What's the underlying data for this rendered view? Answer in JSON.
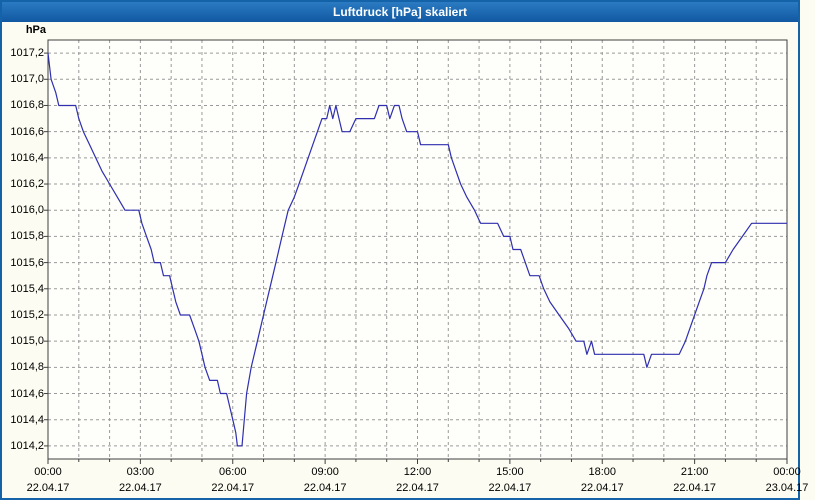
{
  "window": {
    "title": "Luftdruck [hPa] skaliert"
  },
  "colors": {
    "titlebar": "#1463A8",
    "window_border": "#1463A8",
    "background": "#FCFCF2",
    "plot_background": "#FEFEFA",
    "grid": "#9A9A9A",
    "plot_border": "#404040",
    "line": "#2F2FB0",
    "title_text": "#FFFFFF",
    "axis_text": "#000000"
  },
  "chart_data": {
    "type": "line",
    "title": "Luftdruck [hPa] skaliert",
    "xlabel": "",
    "ylabel": "hPa",
    "ylim": [
      1014.1,
      1017.3
    ],
    "xlim_hours": [
      0,
      24
    ],
    "grid": "on",
    "grid_style": "dashed",
    "x_gridline_interval_hours": 1,
    "y_gridline_interval": 0.2,
    "legend": "none",
    "yticks": [
      {
        "value": 1017.2,
        "label": "1017,2"
      },
      {
        "value": 1017.0,
        "label": "1017,0"
      },
      {
        "value": 1016.8,
        "label": "1016,8"
      },
      {
        "value": 1016.6,
        "label": "1016,6"
      },
      {
        "value": 1016.4,
        "label": "1016,4"
      },
      {
        "value": 1016.2,
        "label": "1016,2"
      },
      {
        "value": 1016.0,
        "label": "1016,0"
      },
      {
        "value": 1015.8,
        "label": "1015,8"
      },
      {
        "value": 1015.6,
        "label": "1015,6"
      },
      {
        "value": 1015.4,
        "label": "1015,4"
      },
      {
        "value": 1015.2,
        "label": "1015,2"
      },
      {
        "value": 1015.0,
        "label": "1015,0"
      },
      {
        "value": 1014.8,
        "label": "1014,8"
      },
      {
        "value": 1014.6,
        "label": "1014,6"
      },
      {
        "value": 1014.4,
        "label": "1014,4"
      },
      {
        "value": 1014.2,
        "label": "1014,2"
      }
    ],
    "xticks": [
      {
        "hour": 0,
        "time": "00:00",
        "date": "22.04.17"
      },
      {
        "hour": 3,
        "time": "03:00",
        "date": "22.04.17"
      },
      {
        "hour": 6,
        "time": "06:00",
        "date": "22.04.17"
      },
      {
        "hour": 9,
        "time": "09:00",
        "date": "22.04.17"
      },
      {
        "hour": 12,
        "time": "12:00",
        "date": "22.04.17"
      },
      {
        "hour": 15,
        "time": "15:00",
        "date": "22.04.17"
      },
      {
        "hour": 18,
        "time": "18:00",
        "date": "22.04.17"
      },
      {
        "hour": 21,
        "time": "21:00",
        "date": "22.04.17"
      },
      {
        "hour": 24,
        "time": "00:00",
        "date": "23.04.17"
      }
    ],
    "series": [
      {
        "name": "Luftdruck",
        "unit": "hPa",
        "color": "#2F2FB0",
        "points": [
          [
            0.0,
            1017.2
          ],
          [
            0.1,
            1017.0
          ],
          [
            0.25,
            1016.9
          ],
          [
            0.35,
            1016.8
          ],
          [
            0.9,
            1016.8
          ],
          [
            1.0,
            1016.7
          ],
          [
            1.15,
            1016.6
          ],
          [
            1.35,
            1016.5
          ],
          [
            1.55,
            1016.4
          ],
          [
            1.75,
            1016.3
          ],
          [
            2.0,
            1016.2
          ],
          [
            2.25,
            1016.1
          ],
          [
            2.5,
            1016.0
          ],
          [
            2.95,
            1016.0
          ],
          [
            3.05,
            1015.9
          ],
          [
            3.2,
            1015.8
          ],
          [
            3.35,
            1015.7
          ],
          [
            3.45,
            1015.6
          ],
          [
            3.65,
            1015.6
          ],
          [
            3.75,
            1015.5
          ],
          [
            3.95,
            1015.5
          ],
          [
            4.05,
            1015.4
          ],
          [
            4.15,
            1015.3
          ],
          [
            4.3,
            1015.2
          ],
          [
            4.6,
            1015.2
          ],
          [
            4.75,
            1015.1
          ],
          [
            4.9,
            1015.0
          ],
          [
            5.0,
            1014.9
          ],
          [
            5.1,
            1014.8
          ],
          [
            5.25,
            1014.7
          ],
          [
            5.5,
            1014.7
          ],
          [
            5.6,
            1014.6
          ],
          [
            5.8,
            1014.6
          ],
          [
            5.9,
            1014.5
          ],
          [
            6.0,
            1014.4
          ],
          [
            6.1,
            1014.3
          ],
          [
            6.15,
            1014.2
          ],
          [
            6.3,
            1014.2
          ],
          [
            6.45,
            1014.6
          ],
          [
            6.6,
            1014.8
          ],
          [
            6.8,
            1015.0
          ],
          [
            7.0,
            1015.2
          ],
          [
            7.2,
            1015.4
          ],
          [
            7.4,
            1015.6
          ],
          [
            7.6,
            1015.8
          ],
          [
            7.8,
            1016.0
          ],
          [
            8.0,
            1016.1
          ],
          [
            8.15,
            1016.2
          ],
          [
            8.3,
            1016.3
          ],
          [
            8.45,
            1016.4
          ],
          [
            8.6,
            1016.5
          ],
          [
            8.75,
            1016.6
          ],
          [
            8.9,
            1016.7
          ],
          [
            9.05,
            1016.7
          ],
          [
            9.15,
            1016.8
          ],
          [
            9.25,
            1016.7
          ],
          [
            9.35,
            1016.8
          ],
          [
            9.45,
            1016.7
          ],
          [
            9.55,
            1016.6
          ],
          [
            9.8,
            1016.6
          ],
          [
            10.0,
            1016.7
          ],
          [
            10.6,
            1016.7
          ],
          [
            10.75,
            1016.8
          ],
          [
            11.0,
            1016.8
          ],
          [
            11.1,
            1016.7
          ],
          [
            11.25,
            1016.8
          ],
          [
            11.4,
            1016.8
          ],
          [
            11.5,
            1016.7
          ],
          [
            11.65,
            1016.6
          ],
          [
            12.0,
            1016.6
          ],
          [
            12.1,
            1016.5
          ],
          [
            12.6,
            1016.5
          ],
          [
            13.0,
            1016.5
          ],
          [
            13.1,
            1016.4
          ],
          [
            13.25,
            1016.3
          ],
          [
            13.4,
            1016.2
          ],
          [
            13.6,
            1016.1
          ],
          [
            13.85,
            1016.0
          ],
          [
            14.05,
            1015.9
          ],
          [
            14.6,
            1015.9
          ],
          [
            14.8,
            1015.8
          ],
          [
            15.0,
            1015.8
          ],
          [
            15.1,
            1015.7
          ],
          [
            15.35,
            1015.7
          ],
          [
            15.5,
            1015.6
          ],
          [
            15.65,
            1015.5
          ],
          [
            15.95,
            1015.5
          ],
          [
            16.1,
            1015.4
          ],
          [
            16.3,
            1015.3
          ],
          [
            16.6,
            1015.2
          ],
          [
            16.9,
            1015.1
          ],
          [
            17.15,
            1015.0
          ],
          [
            17.4,
            1015.0
          ],
          [
            17.5,
            1014.9
          ],
          [
            17.65,
            1015.0
          ],
          [
            17.75,
            1014.9
          ],
          [
            18.0,
            1014.9
          ],
          [
            19.35,
            1014.9
          ],
          [
            19.45,
            1014.8
          ],
          [
            19.6,
            1014.9
          ],
          [
            20.5,
            1014.9
          ],
          [
            20.7,
            1015.0
          ],
          [
            20.85,
            1015.1
          ],
          [
            21.0,
            1015.2
          ],
          [
            21.15,
            1015.3
          ],
          [
            21.3,
            1015.4
          ],
          [
            21.4,
            1015.5
          ],
          [
            21.55,
            1015.6
          ],
          [
            22.0,
            1015.6
          ],
          [
            22.25,
            1015.7
          ],
          [
            22.55,
            1015.8
          ],
          [
            22.85,
            1015.9
          ],
          [
            23.2,
            1015.9
          ],
          [
            24.0,
            1015.9
          ]
        ]
      }
    ]
  }
}
